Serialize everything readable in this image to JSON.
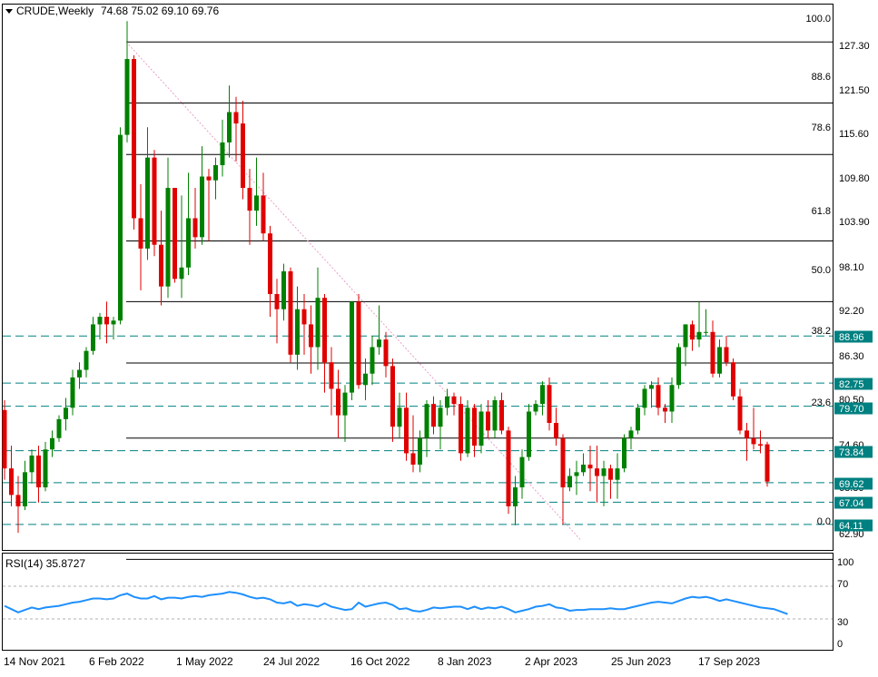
{
  "header": {
    "symbol_timeframe": "CRUDE,Weekly",
    "ohlc": "74.68 75.02 69.10 69.76",
    "menu_icon": "triangle-down-icon"
  },
  "indicator": {
    "label": "RSI(14) 35.8727",
    "levels": [
      "100",
      "70",
      "30",
      "0"
    ]
  },
  "colors": {
    "up": "#008000",
    "down": "#e00000",
    "rsi": "#1e90ff",
    "fib": "#000000",
    "tag_bg": "#008080",
    "tag_text": "#ffffff",
    "trend": "#e8a0c8"
  },
  "chart_data": {
    "type": "candlestick",
    "ylim": [
      61.0,
      131.0
    ],
    "y_ticks": [
      "127.30",
      "121.50",
      "115.60",
      "109.80",
      "103.90",
      "98.10",
      "92.20",
      "86.30",
      "80.50",
      "74.60",
      "68.80",
      "62.90"
    ],
    "x_ticks": [
      "14 Nov 2021",
      "6 Feb 2022",
      "1 May 2022",
      "24 Jul 2022",
      "16 Oct 2022",
      "8 Jan 2023",
      "2 Apr 2023",
      "25 Jun 2023",
      "17 Sep 2023"
    ],
    "fibonacci": [
      {
        "level": "100.0",
        "price": 127.75
      },
      {
        "level": "88.6",
        "price": 119.7
      },
      {
        "level": "78.6",
        "price": 112.9
      },
      {
        "level": "61.8",
        "price": 101.5
      },
      {
        "level": "50.0",
        "price": 93.5
      },
      {
        "level": "38.2",
        "price": 85.4
      },
      {
        "level": "23.6",
        "price": 75.5
      },
      {
        "level": "0.0",
        "price": 59.5
      }
    ],
    "price_tags": [
      "88.96",
      "82.75",
      "79.70",
      "73.84",
      "69.62",
      "67.04",
      "64.11"
    ],
    "candles": [
      {
        "o": 79.2,
        "h": 80.5,
        "l": 70.0,
        "c": 71.5
      },
      {
        "o": 71.5,
        "h": 74.5,
        "l": 66.5,
        "c": 68.0
      },
      {
        "o": 68.0,
        "h": 70.5,
        "l": 63.0,
        "c": 66.5
      },
      {
        "o": 66.5,
        "h": 72.5,
        "l": 66.0,
        "c": 71.0
      },
      {
        "o": 71.0,
        "h": 74.0,
        "l": 69.5,
        "c": 73.2
      },
      {
        "o": 73.2,
        "h": 74.5,
        "l": 67.0,
        "c": 69.0
      },
      {
        "o": 69.0,
        "h": 75.0,
        "l": 68.5,
        "c": 74.0
      },
      {
        "o": 74.0,
        "h": 76.5,
        "l": 73.0,
        "c": 75.5
      },
      {
        "o": 75.5,
        "h": 78.5,
        "l": 75.0,
        "c": 78.0
      },
      {
        "o": 78.0,
        "h": 80.8,
        "l": 76.5,
        "c": 79.5
      },
      {
        "o": 79.5,
        "h": 84.5,
        "l": 78.5,
        "c": 83.5
      },
      {
        "o": 83.5,
        "h": 85.5,
        "l": 82.0,
        "c": 84.5
      },
      {
        "o": 84.5,
        "h": 87.5,
        "l": 83.5,
        "c": 87.0
      },
      {
        "o": 87.0,
        "h": 91.5,
        "l": 86.5,
        "c": 90.5
      },
      {
        "o": 90.5,
        "h": 92.0,
        "l": 88.5,
        "c": 91.5
      },
      {
        "o": 91.5,
        "h": 93.5,
        "l": 88.0,
        "c": 90.5
      },
      {
        "o": 90.5,
        "h": 91.5,
        "l": 88.5,
        "c": 91.0
      },
      {
        "o": 91.0,
        "h": 116.5,
        "l": 90.5,
        "c": 115.5
      },
      {
        "o": 115.5,
        "h": 130.5,
        "l": 114.5,
        "c": 125.5
      },
      {
        "o": 125.5,
        "h": 126.0,
        "l": 103.0,
        "c": 104.5
      },
      {
        "o": 104.5,
        "h": 109.0,
        "l": 95.0,
        "c": 100.5
      },
      {
        "o": 100.5,
        "h": 116.5,
        "l": 99.0,
        "c": 112.5
      },
      {
        "o": 112.5,
        "h": 113.5,
        "l": 99.5,
        "c": 101.0
      },
      {
        "o": 101.0,
        "h": 105.5,
        "l": 93.0,
        "c": 95.5
      },
      {
        "o": 95.5,
        "h": 112.5,
        "l": 94.0,
        "c": 108.5
      },
      {
        "o": 108.5,
        "h": 108.5,
        "l": 96.0,
        "c": 96.5
      },
      {
        "o": 96.5,
        "h": 107.5,
        "l": 94.0,
        "c": 98.0
      },
      {
        "o": 98.0,
        "h": 110.5,
        "l": 97.0,
        "c": 104.5
      },
      {
        "o": 104.5,
        "h": 108.5,
        "l": 100.5,
        "c": 102.0
      },
      {
        "o": 102.0,
        "h": 114.0,
        "l": 101.0,
        "c": 110.0
      },
      {
        "o": 110.0,
        "h": 111.0,
        "l": 101.5,
        "c": 109.5
      },
      {
        "o": 109.5,
        "h": 112.5,
        "l": 107.0,
        "c": 111.5
      },
      {
        "o": 111.5,
        "h": 117.5,
        "l": 110.0,
        "c": 114.5
      },
      {
        "o": 114.5,
        "h": 122.0,
        "l": 112.5,
        "c": 118.5
      },
      {
        "o": 118.5,
        "h": 120.5,
        "l": 112.0,
        "c": 117.0
      },
      {
        "o": 117.0,
        "h": 120.0,
        "l": 107.0,
        "c": 108.5
      },
      {
        "o": 108.5,
        "h": 111.0,
        "l": 101.0,
        "c": 105.5
      },
      {
        "o": 105.5,
        "h": 112.5,
        "l": 103.5,
        "c": 107.5
      },
      {
        "o": 107.5,
        "h": 110.5,
        "l": 101.5,
        "c": 102.5
      },
      {
        "o": 102.5,
        "h": 103.5,
        "l": 91.5,
        "c": 94.5
      },
      {
        "o": 94.5,
        "h": 96.5,
        "l": 88.0,
        "c": 92.5
      },
      {
        "o": 92.5,
        "h": 98.5,
        "l": 91.0,
        "c": 97.5
      },
      {
        "o": 97.5,
        "h": 98.0,
        "l": 85.5,
        "c": 86.5
      },
      {
        "o": 86.5,
        "h": 95.5,
        "l": 84.5,
        "c": 92.5
      },
      {
        "o": 92.5,
        "h": 94.5,
        "l": 86.5,
        "c": 90.5
      },
      {
        "o": 90.5,
        "h": 93.0,
        "l": 84.0,
        "c": 87.5
      },
      {
        "o": 87.5,
        "h": 98.0,
        "l": 84.5,
        "c": 94.0
      },
      {
        "o": 94.0,
        "h": 94.5,
        "l": 81.5,
        "c": 85.5
      },
      {
        "o": 85.5,
        "h": 87.5,
        "l": 78.5,
        "c": 82.0
      },
      {
        "o": 82.0,
        "h": 84.5,
        "l": 75.5,
        "c": 78.5
      },
      {
        "o": 78.5,
        "h": 82.5,
        "l": 75.0,
        "c": 81.5
      },
      {
        "o": 81.5,
        "h": 93.5,
        "l": 80.5,
        "c": 93.5
      },
      {
        "o": 93.5,
        "h": 94.5,
        "l": 82.0,
        "c": 82.5
      },
      {
        "o": 82.5,
        "h": 86.0,
        "l": 80.5,
        "c": 84.0
      },
      {
        "o": 84.0,
        "h": 89.0,
        "l": 82.5,
        "c": 87.5
      },
      {
        "o": 87.5,
        "h": 93.0,
        "l": 86.5,
        "c": 88.5
      },
      {
        "o": 88.5,
        "h": 89.5,
        "l": 83.5,
        "c": 85.0
      },
      {
        "o": 85.0,
        "h": 86.0,
        "l": 75.0,
        "c": 77.0
      },
      {
        "o": 77.0,
        "h": 81.5,
        "l": 75.5,
        "c": 79.5
      },
      {
        "o": 79.5,
        "h": 81.5,
        "l": 72.5,
        "c": 73.5
      },
      {
        "o": 73.5,
        "h": 78.5,
        "l": 71.0,
        "c": 72.0
      },
      {
        "o": 72.0,
        "h": 76.5,
        "l": 71.0,
        "c": 75.5
      },
      {
        "o": 75.5,
        "h": 80.5,
        "l": 73.0,
        "c": 80.0
      },
      {
        "o": 80.0,
        "h": 81.0,
        "l": 76.0,
        "c": 77.0
      },
      {
        "o": 77.0,
        "h": 80.5,
        "l": 74.0,
        "c": 79.5
      },
      {
        "o": 79.5,
        "h": 82.0,
        "l": 78.5,
        "c": 81.0
      },
      {
        "o": 81.0,
        "h": 81.5,
        "l": 78.5,
        "c": 80.0
      },
      {
        "o": 80.0,
        "h": 81.0,
        "l": 72.5,
        "c": 73.5
      },
      {
        "o": 73.5,
        "h": 80.5,
        "l": 73.0,
        "c": 79.5
      },
      {
        "o": 79.5,
        "h": 80.0,
        "l": 73.0,
        "c": 74.5
      },
      {
        "o": 74.5,
        "h": 80.0,
        "l": 73.5,
        "c": 79.0
      },
      {
        "o": 79.0,
        "h": 80.5,
        "l": 75.5,
        "c": 76.5
      },
      {
        "o": 76.5,
        "h": 81.0,
        "l": 75.5,
        "c": 80.5
      },
      {
        "o": 80.5,
        "h": 81.5,
        "l": 76.0,
        "c": 76.5
      },
      {
        "o": 76.5,
        "h": 77.0,
        "l": 65.5,
        "c": 66.5
      },
      {
        "o": 66.5,
        "h": 70.5,
        "l": 64.0,
        "c": 69.0
      },
      {
        "o": 69.0,
        "h": 74.0,
        "l": 67.5,
        "c": 73.0
      },
      {
        "o": 73.0,
        "h": 80.0,
        "l": 72.5,
        "c": 79.0
      },
      {
        "o": 79.0,
        "h": 80.5,
        "l": 78.5,
        "c": 80.0
      },
      {
        "o": 80.0,
        "h": 83.0,
        "l": 78.5,
        "c": 82.5
      },
      {
        "o": 82.5,
        "h": 83.5,
        "l": 76.5,
        "c": 77.5
      },
      {
        "o": 77.5,
        "h": 79.5,
        "l": 74.5,
        "c": 75.5
      },
      {
        "o": 75.5,
        "h": 76.0,
        "l": 64.1,
        "c": 69.0
      },
      {
        "o": 69.0,
        "h": 71.5,
        "l": 68.5,
        "c": 70.5
      },
      {
        "o": 70.5,
        "h": 72.5,
        "l": 68.0,
        "c": 71.0
      },
      {
        "o": 71.0,
        "h": 73.5,
        "l": 70.5,
        "c": 72.0
      },
      {
        "o": 72.0,
        "h": 74.5,
        "l": 68.5,
        "c": 71.5
      },
      {
        "o": 71.5,
        "h": 74.5,
        "l": 67.0,
        "c": 70.5
      },
      {
        "o": 70.5,
        "h": 72.5,
        "l": 66.5,
        "c": 71.5
      },
      {
        "o": 71.5,
        "h": 72.0,
        "l": 67.5,
        "c": 70.0
      },
      {
        "o": 70.0,
        "h": 73.5,
        "l": 67.5,
        "c": 71.5
      },
      {
        "o": 71.5,
        "h": 76.0,
        "l": 71.0,
        "c": 75.5
      },
      {
        "o": 75.5,
        "h": 77.0,
        "l": 74.0,
        "c": 76.5
      },
      {
        "o": 76.5,
        "h": 80.0,
        "l": 76.0,
        "c": 79.5
      },
      {
        "o": 79.5,
        "h": 82.5,
        "l": 78.5,
        "c": 82.0
      },
      {
        "o": 82.0,
        "h": 83.0,
        "l": 79.5,
        "c": 82.5
      },
      {
        "o": 82.5,
        "h": 83.5,
        "l": 78.5,
        "c": 79.5
      },
      {
        "o": 79.5,
        "h": 80.0,
        "l": 77.5,
        "c": 79.0
      },
      {
        "o": 79.0,
        "h": 83.5,
        "l": 77.5,
        "c": 82.5
      },
      {
        "o": 82.5,
        "h": 88.0,
        "l": 82.0,
        "c": 87.5
      },
      {
        "o": 87.5,
        "h": 90.5,
        "l": 85.0,
        "c": 90.5
      },
      {
        "o": 90.5,
        "h": 91.0,
        "l": 87.0,
        "c": 88.5
      },
      {
        "o": 88.5,
        "h": 93.5,
        "l": 87.5,
        "c": 89.5
      },
      {
        "o": 89.5,
        "h": 92.5,
        "l": 89.0,
        "c": 89.5
      },
      {
        "o": 89.5,
        "h": 91.0,
        "l": 83.5,
        "c": 84.0
      },
      {
        "o": 84.0,
        "h": 88.5,
        "l": 83.5,
        "c": 87.5
      },
      {
        "o": 87.5,
        "h": 89.0,
        "l": 85.0,
        "c": 85.5
      },
      {
        "o": 85.5,
        "h": 86.0,
        "l": 80.5,
        "c": 81.0
      },
      {
        "o": 81.0,
        "h": 82.0,
        "l": 76.0,
        "c": 76.5
      },
      {
        "o": 76.5,
        "h": 77.5,
        "l": 72.5,
        "c": 75.5
      },
      {
        "o": 75.5,
        "h": 79.5,
        "l": 74.0,
        "c": 74.7
      },
      {
        "o": 74.7,
        "h": 76.5,
        "l": 73.5,
        "c": 74.5
      },
      {
        "o": 74.68,
        "h": 75.02,
        "l": 69.1,
        "c": 69.76
      }
    ],
    "rsi": [
      46,
      42,
      38,
      41,
      44,
      42,
      44,
      45,
      46,
      48,
      50,
      51,
      53,
      55,
      55,
      54,
      55,
      59,
      61,
      57,
      55,
      55,
      58,
      54,
      56,
      56,
      55,
      57,
      58,
      57,
      59,
      60,
      61,
      63,
      62,
      60,
      57,
      55,
      56,
      54,
      50,
      49,
      51,
      46,
      48,
      47,
      45,
      49,
      45,
      43,
      41,
      42,
      50,
      45,
      47,
      49,
      50,
      47,
      42,
      43,
      40,
      39,
      41,
      44,
      43,
      44,
      45,
      45,
      42,
      45,
      42,
      44,
      43,
      45,
      42,
      38,
      40,
      42,
      45,
      46,
      48,
      44,
      43,
      40,
      41,
      41,
      42,
      42,
      42,
      43,
      42,
      42,
      44,
      46,
      48,
      50,
      51,
      50,
      49,
      52,
      55,
      57,
      56,
      57,
      55,
      52,
      54,
      52,
      50,
      48,
      46,
      44,
      43,
      42,
      39,
      35.87
    ]
  }
}
